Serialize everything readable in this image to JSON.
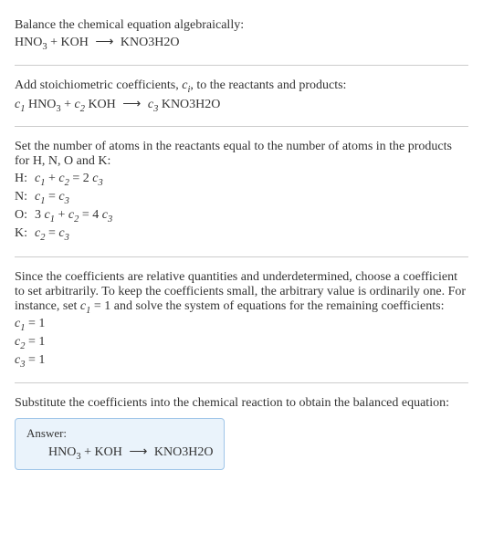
{
  "section1": {
    "l1": "Balance the chemical equation algebraically:",
    "eq_lhs1": "HNO",
    "eq_sub1": "3",
    "eq_plus": " + KOH ",
    "eq_arrow": "⟶",
    "eq_rhs": " KNO3H2O"
  },
  "section2": {
    "l1a": "Add stoichiometric coefficients, ",
    "ci_c": "c",
    "ci_i": "i",
    "l1b": ", to the reactants and products:",
    "c1": "c",
    "c1s": "1",
    "r1": " HNO",
    "r1s": "3",
    "plus": " + ",
    "c2": "c",
    "c2s": "2",
    "r2": " KOH ",
    "arrow": "⟶ ",
    "c3": "c",
    "c3s": "3",
    "r3": " KNO3H2O"
  },
  "section3": {
    "l1": "Set the number of atoms in the reactants equal to the number of atoms in the products for H, N, O and K:",
    "rows": [
      {
        "el": "H:",
        "c1": "c",
        "s1": "1",
        "mid": " + ",
        "c2": "c",
        "s2": "2",
        "eq": " = 2 ",
        "c3": "c",
        "s3": "3"
      },
      {
        "el": "N:",
        "c1": "c",
        "s1": "1",
        "mid": "",
        "c2": "",
        "s2": "",
        "eq": " = ",
        "c3": "c",
        "s3": "3"
      },
      {
        "el": "O:",
        "pre": "3 ",
        "c1": "c",
        "s1": "1",
        "mid": " + ",
        "c2": "c",
        "s2": "2",
        "eq": " = 4 ",
        "c3": "c",
        "s3": "3"
      },
      {
        "el": "K:",
        "c1": "c",
        "s1": "2",
        "mid": "",
        "c2": "",
        "s2": "",
        "eq": " = ",
        "c3": "c",
        "s3": "3"
      }
    ]
  },
  "section4": {
    "l1a": "Since the coefficients are relative quantities and underdetermined, choose a coefficient to set arbitrarily. To keep the coefficients small, the arbitrary value is ordinarily one. For instance, set ",
    "cv": "c",
    "cvs": "1",
    "l1b": " = 1 and solve the system of equations for the remaining coefficients:",
    "r1a": "c",
    "r1s": "1",
    "r1b": " = 1",
    "r2a": "c",
    "r2s": "2",
    "r2b": " = 1",
    "r3a": "c",
    "r3s": "3",
    "r3b": " = 1"
  },
  "section5": {
    "l1": "Substitute the coefficients into the chemical reaction to obtain the balanced equation:",
    "answer_label": "Answer:",
    "eq_lhs1": "HNO",
    "eq_sub1": "3",
    "eq_plus": " + KOH ",
    "eq_arrow": "⟶",
    "eq_rhs": " KNO3H2O"
  },
  "colors": {
    "text": "#333333",
    "divider": "#cccccc",
    "answer_border": "#9fc5e8",
    "answer_bg": "#eaf3fb"
  }
}
